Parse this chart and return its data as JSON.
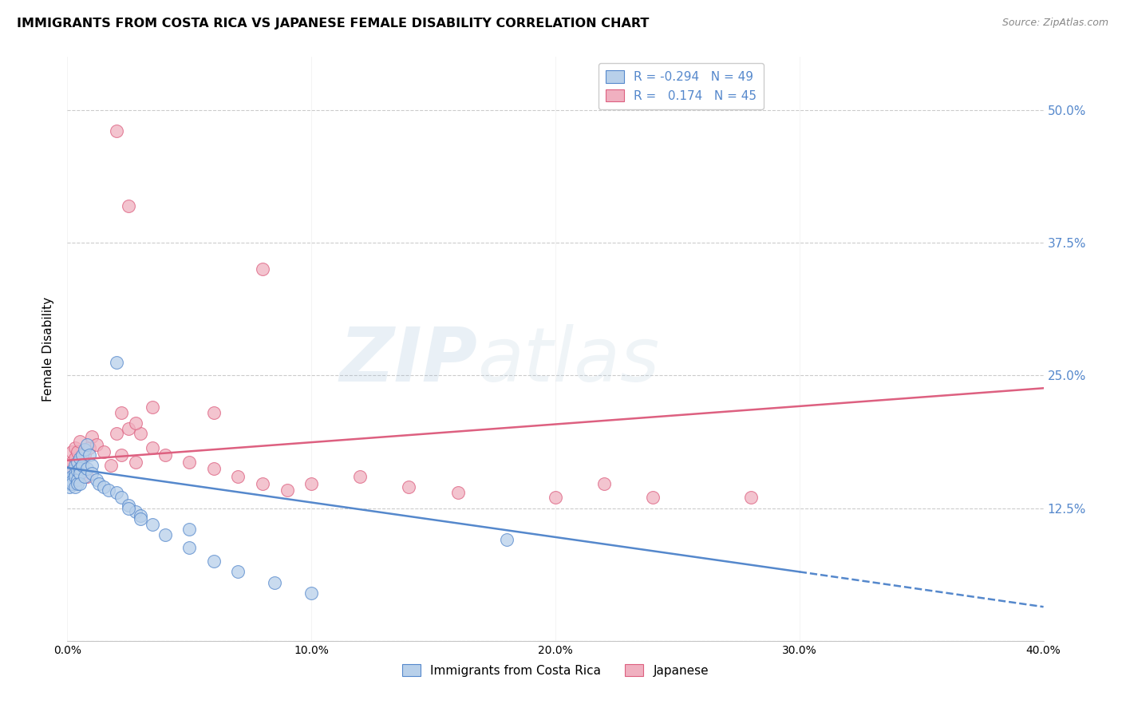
{
  "title": "IMMIGRANTS FROM COSTA RICA VS JAPANESE FEMALE DISABILITY CORRELATION CHART",
  "source": "Source: ZipAtlas.com",
  "ylabel": "Female Disability",
  "yticks": [
    0.0,
    0.125,
    0.25,
    0.375,
    0.5
  ],
  "ytick_labels": [
    "",
    "12.5%",
    "25.0%",
    "37.5%",
    "50.0%"
  ],
  "xlim": [
    0.0,
    0.4
  ],
  "ylim": [
    0.0,
    0.55
  ],
  "series1_label": "Immigrants from Costa Rica",
  "series2_label": "Japanese",
  "color_blue_fill": "#b8d0ea",
  "color_blue_edge": "#5588cc",
  "color_pink_fill": "#f0b0c0",
  "color_pink_edge": "#dd6080",
  "color_blue_line": "#5588cc",
  "color_pink_line": "#dd6080",
  "color_text": "#5588cc",
  "watermark_zip": "ZIP",
  "watermark_atlas": "atlas",
  "blue_x": [
    0.001,
    0.001,
    0.001,
    0.002,
    0.002,
    0.002,
    0.002,
    0.003,
    0.003,
    0.003,
    0.003,
    0.004,
    0.004,
    0.004,
    0.004,
    0.005,
    0.005,
    0.005,
    0.005,
    0.006,
    0.006,
    0.007,
    0.007,
    0.008,
    0.008,
    0.009,
    0.01,
    0.01,
    0.012,
    0.013,
    0.015,
    0.017,
    0.02,
    0.022,
    0.025,
    0.028,
    0.03,
    0.035,
    0.04,
    0.05,
    0.06,
    0.07,
    0.085,
    0.1,
    0.02,
    0.025,
    0.03,
    0.05,
    0.18
  ],
  "blue_y": [
    0.148,
    0.152,
    0.145,
    0.16,
    0.155,
    0.15,
    0.148,
    0.165,
    0.158,
    0.145,
    0.155,
    0.168,
    0.16,
    0.152,
    0.148,
    0.172,
    0.162,
    0.158,
    0.148,
    0.175,
    0.165,
    0.18,
    0.155,
    0.185,
    0.162,
    0.175,
    0.165,
    0.158,
    0.152,
    0.148,
    0.145,
    0.142,
    0.14,
    0.135,
    0.128,
    0.122,
    0.118,
    0.11,
    0.1,
    0.088,
    0.075,
    0.065,
    0.055,
    0.045,
    0.262,
    0.125,
    0.115,
    0.105,
    0.095
  ],
  "pink_x": [
    0.001,
    0.001,
    0.002,
    0.002,
    0.003,
    0.003,
    0.004,
    0.004,
    0.005,
    0.005,
    0.006,
    0.007,
    0.008,
    0.009,
    0.01,
    0.012,
    0.015,
    0.018,
    0.02,
    0.022,
    0.025,
    0.028,
    0.03,
    0.035,
    0.04,
    0.05,
    0.06,
    0.07,
    0.08,
    0.09,
    0.1,
    0.12,
    0.14,
    0.16,
    0.2,
    0.22,
    0.24,
    0.28,
    0.02,
    0.025,
    0.035,
    0.06,
    0.08,
    0.022,
    0.028
  ],
  "pink_y": [
    0.165,
    0.158,
    0.168,
    0.178,
    0.172,
    0.182,
    0.155,
    0.178,
    0.162,
    0.188,
    0.17,
    0.175,
    0.155,
    0.182,
    0.192,
    0.185,
    0.178,
    0.165,
    0.195,
    0.175,
    0.2,
    0.168,
    0.195,
    0.182,
    0.175,
    0.168,
    0.162,
    0.155,
    0.148,
    0.142,
    0.148,
    0.155,
    0.145,
    0.14,
    0.135,
    0.148,
    0.135,
    0.135,
    0.48,
    0.41,
    0.22,
    0.215,
    0.35,
    0.215,
    0.205
  ],
  "blue_trend_x0": 0.0,
  "blue_trend_x1": 0.3,
  "blue_trend_x2": 0.4,
  "blue_trend_y0": 0.163,
  "blue_trend_y1": 0.065,
  "blue_trend_y2": 0.032,
  "pink_trend_x0": 0.0,
  "pink_trend_x1": 0.4,
  "pink_trend_y0": 0.17,
  "pink_trend_y1": 0.238
}
